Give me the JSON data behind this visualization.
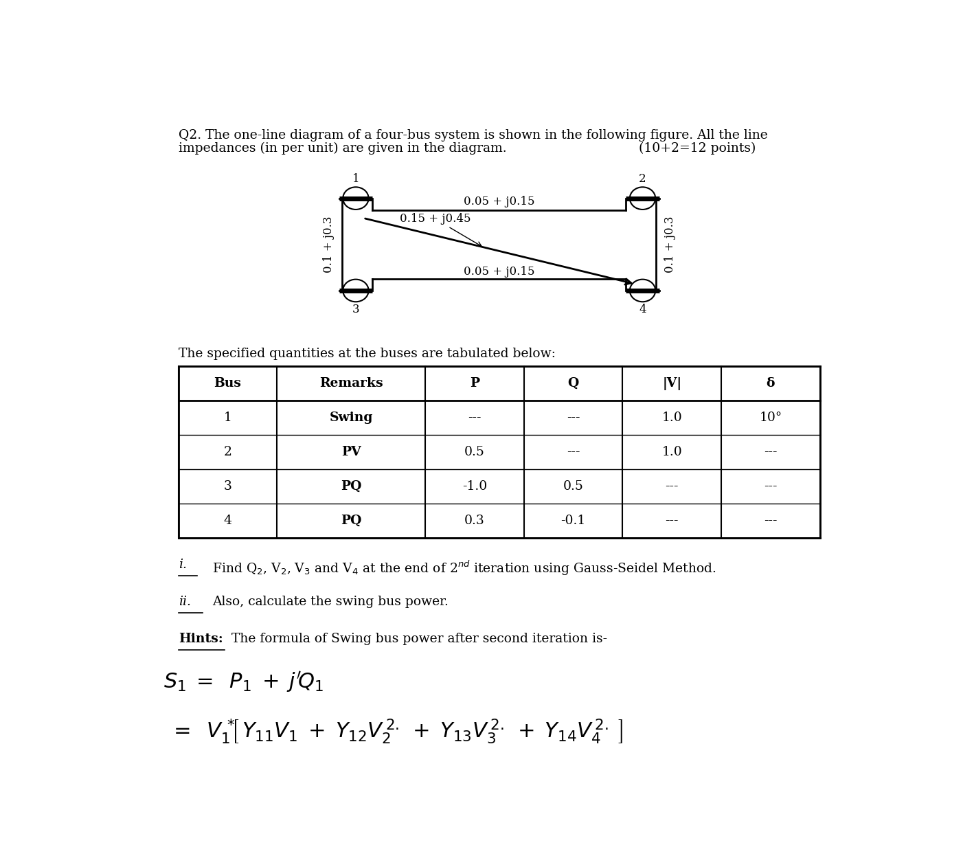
{
  "bg_color": "#ffffff",
  "line1_text": "Q2. The one-line diagram of a four-bus system is shown in the following figure. All the line",
  "line2_text": "impedances (in per unit) are given in the diagram.",
  "line2_points": "(10+2=12 points)",
  "line12_label": "0.05 + j0.15",
  "line34_label": "0.05 + j0.15",
  "line13_label": "0.1 + j0.3",
  "line24_label": "0.1 + j0.3",
  "line14_label": "0.15 + j0.45",
  "table_intro": "The specified quantities at the buses are tabulated below:",
  "table_headers": [
    "Bus",
    "Remarks",
    "P",
    "Q",
    "|V|",
    "δ"
  ],
  "table_data": [
    [
      "1",
      "Swing",
      "---",
      "---",
      "1.0",
      "10°"
    ],
    [
      "2",
      "PV",
      "0.5",
      "---",
      "1.0",
      "---"
    ],
    [
      "3",
      "PQ",
      "-1.0",
      "0.5",
      "---",
      "---"
    ],
    [
      "4",
      "PQ",
      "0.3",
      "-0.1",
      "---",
      "---"
    ]
  ],
  "part_i_label": "i.",
  "part_i_text": "Find Q₂, V₂, V₃ and V₄ at the end of 2",
  "part_i_super": "nd",
  "part_i_rest": " iteration using Gauss-Seidel Method.",
  "part_ii_label": "ii.",
  "part_ii_text": "Also, calculate the swing bus power.",
  "hints_bold": "Hints:",
  "hints_text": " The formula of Swing bus power after second iteration is-"
}
